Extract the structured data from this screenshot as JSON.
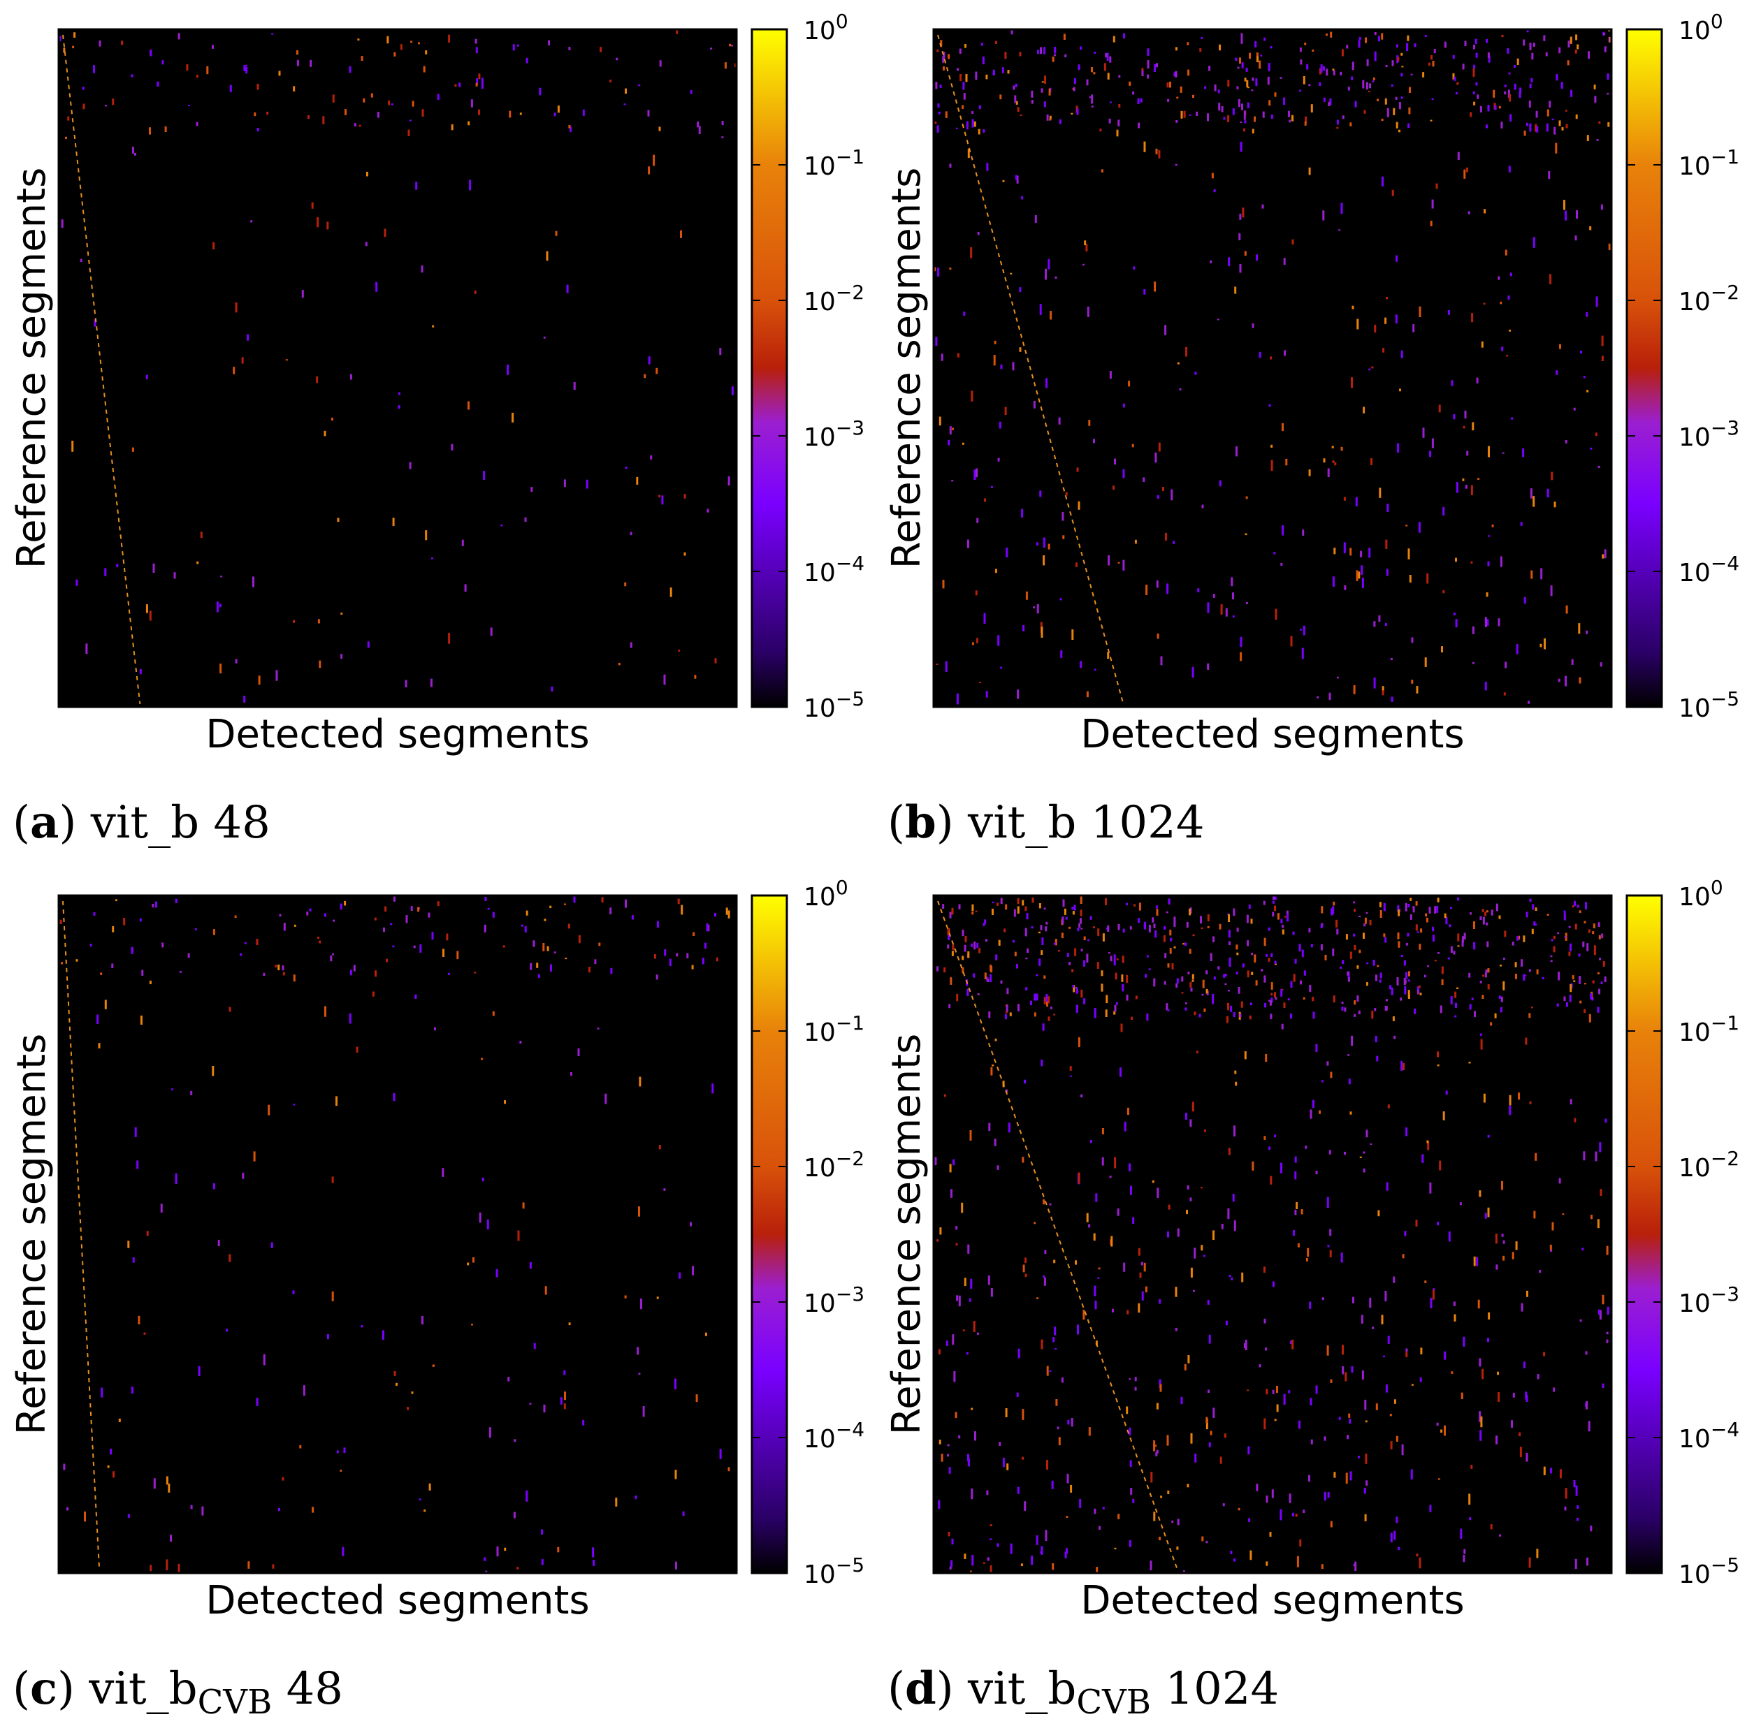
{
  "figure": {
    "panels": [
      {
        "id": "a",
        "caption_letter": "a",
        "caption_base": "vit_b",
        "caption_sub": "",
        "caption_num": "48"
      },
      {
        "id": "b",
        "caption_letter": "b",
        "caption_base": "vit_b",
        "caption_sub": "",
        "caption_num": "1024"
      },
      {
        "id": "c",
        "caption_letter": "c",
        "caption_base": "vit_b",
        "caption_sub": "CVB",
        "caption_num": "48"
      },
      {
        "id": "d",
        "caption_letter": "d",
        "caption_base": "vit_b",
        "caption_sub": "CVB",
        "caption_num": "1024"
      }
    ]
  },
  "colors": {
    "background": "#000000",
    "colormap": "gnuplot",
    "colormap_stops": [
      "#000000",
      "#2a0066",
      "#7a00ff",
      "#9b1fd0",
      "#b8200a",
      "#d8520a",
      "#e8820a",
      "#ffff00"
    ],
    "diagonal": "#e89020"
  },
  "chart_data": [
    {
      "type": "heatmap",
      "panel": "a",
      "xlabel": "Detected segments",
      "ylabel": "Reference segments",
      "x_ticks": [],
      "y_ticks": [],
      "colorbar": {
        "scale": "log",
        "range": [
          1e-05,
          1
        ],
        "tick_labels": [
          {
            "base": "10",
            "exp": "0"
          },
          {
            "base": "10",
            "exp": "−1"
          },
          {
            "base": "10",
            "exp": "−2"
          },
          {
            "base": "10",
            "exp": "−3"
          },
          {
            "base": "10",
            "exp": "−4"
          },
          {
            "base": "10",
            "exp": "−5"
          }
        ]
      },
      "density": 0.025,
      "top_band_fraction": 0.16,
      "diagonal_end_fraction": 0.12,
      "seed": 11
    },
    {
      "type": "heatmap",
      "panel": "b",
      "xlabel": "Detected segments",
      "ylabel": "Reference segments",
      "x_ticks": [],
      "y_ticks": [],
      "colorbar": {
        "scale": "log",
        "range": [
          1e-05,
          1
        ],
        "tick_labels": [
          {
            "base": "10",
            "exp": "0"
          },
          {
            "base": "10",
            "exp": "−1"
          },
          {
            "base": "10",
            "exp": "−2"
          },
          {
            "base": "10",
            "exp": "−3"
          },
          {
            "base": "10",
            "exp": "−4"
          },
          {
            "base": "10",
            "exp": "−5"
          }
        ]
      },
      "density": 0.08,
      "top_band_fraction": 0.15,
      "diagonal_end_fraction": 0.28,
      "seed": 23
    },
    {
      "type": "heatmap",
      "panel": "c",
      "xlabel": "Detected segments",
      "ylabel": "Reference segments",
      "x_ticks": [],
      "y_ticks": [],
      "colorbar": {
        "scale": "log",
        "range": [
          1e-05,
          1
        ],
        "tick_labels": [
          {
            "base": "10",
            "exp": "0"
          },
          {
            "base": "10",
            "exp": "−1"
          },
          {
            "base": "10",
            "exp": "−2"
          },
          {
            "base": "10",
            "exp": "−3"
          },
          {
            "base": "10",
            "exp": "−4"
          },
          {
            "base": "10",
            "exp": "−5"
          }
        ]
      },
      "density": 0.03,
      "top_band_fraction": 0.12,
      "diagonal_end_fraction": 0.06,
      "seed": 37
    },
    {
      "type": "heatmap",
      "panel": "d",
      "xlabel": "Detected segments",
      "ylabel": "Reference segments",
      "x_ticks": [],
      "y_ticks": [],
      "colorbar": {
        "scale": "log",
        "range": [
          1e-05,
          1
        ],
        "tick_labels": [
          {
            "base": "10",
            "exp": "0"
          },
          {
            "base": "10",
            "exp": "−1"
          },
          {
            "base": "10",
            "exp": "−2"
          },
          {
            "base": "10",
            "exp": "−3"
          },
          {
            "base": "10",
            "exp": "−4"
          },
          {
            "base": "10",
            "exp": "−5"
          }
        ]
      },
      "density": 0.12,
      "top_band_fraction": 0.18,
      "diagonal_end_fraction": 0.36,
      "seed": 53
    }
  ]
}
